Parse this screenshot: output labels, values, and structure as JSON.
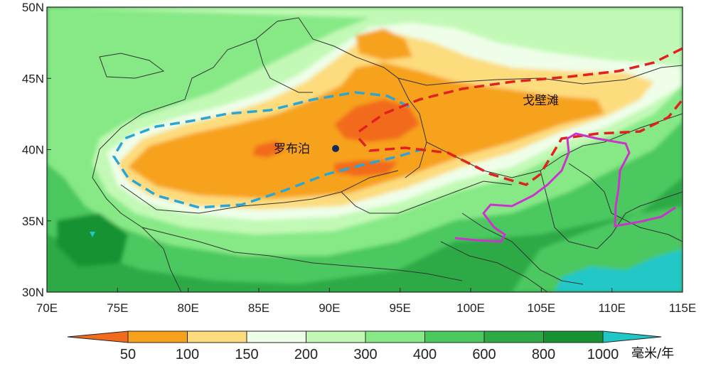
{
  "map": {
    "lon_range": [
      70,
      115
    ],
    "lat_range": [
      30,
      50
    ],
    "lat_labels": [
      "30N",
      "35N",
      "40N",
      "45N",
      "50N"
    ],
    "lon_labels": [
      "70E",
      "75E",
      "80E",
      "85E",
      "90E",
      "95E",
      "100E",
      "105E",
      "110E",
      "115E"
    ],
    "places": [
      {
        "name": "罗布泊",
        "lon": 90.5,
        "lat": 40.1,
        "marker": true
      },
      {
        "name": "戈壁滩",
        "lon": 106.5,
        "lat": 43.4,
        "marker": false
      }
    ],
    "colors": {
      "lt50": "#f26b1d",
      "b50_100": "#f7a21b",
      "b100_150": "#fddc7e",
      "b150_200": "#eefee8",
      "b200_300": "#c2f9b6",
      "b300_400": "#86e986",
      "b400_600": "#4bc85e",
      "b600_800": "#2daa46",
      "b800_1000": "#169233",
      "gt1000": "#20c7c7",
      "blue_dash": "#28a6d8",
      "red_dash": "#e32020",
      "magenta_line": "#cc33cc",
      "border": "#333333"
    }
  },
  "colorbar": {
    "ticks": [
      "50",
      "100",
      "150",
      "200",
      "300",
      "400",
      "600",
      "800",
      "1000"
    ],
    "unit": "毫米/年"
  }
}
